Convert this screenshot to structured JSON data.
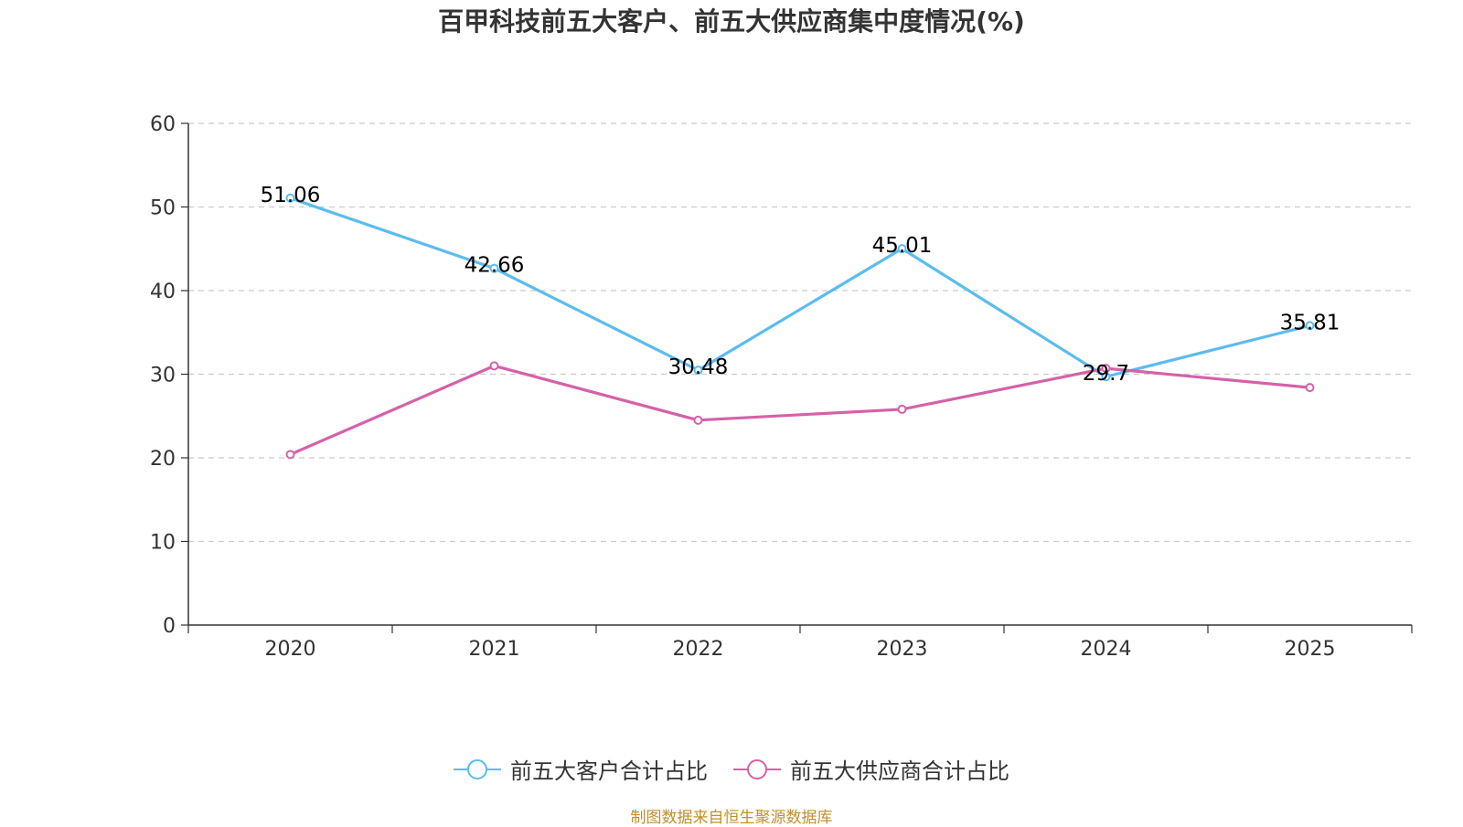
{
  "chart_data": {
    "type": "line",
    "title": "百甲科技前五大客户、前五大供应商集中度情况(%)",
    "categories": [
      "2020",
      "2021",
      "2022",
      "2023",
      "2024",
      "2025"
    ],
    "ylim": [
      0,
      60
    ],
    "yticks": [
      0,
      10,
      20,
      30,
      40,
      50,
      60
    ],
    "grid": true,
    "legend_position": "bottom",
    "series": [
      {
        "name": "前五大客户合计占比",
        "color": "#5bbcf0",
        "values": [
          51.06,
          42.66,
          30.48,
          45.01,
          29.7,
          35.81
        ],
        "labels": [
          "51.06",
          "42.66",
          "30.48",
          "45.01",
          "29.7",
          "35.81"
        ],
        "show_labels": true
      },
      {
        "name": "前五大供应商合计占比",
        "color": "#d462a8",
        "values": [
          20.4,
          31.0,
          24.5,
          25.8,
          30.7,
          28.4
        ],
        "show_labels": false
      }
    ]
  },
  "source": "制图数据来自恒生聚源数据库"
}
